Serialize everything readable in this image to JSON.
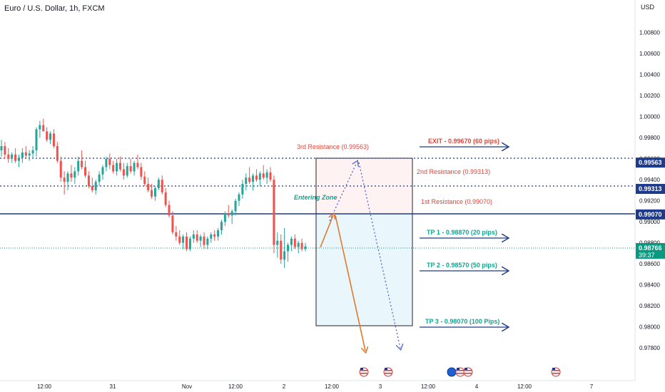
{
  "header": {
    "symbol_title": "Euro / U.S. Dollar, 1h, FXCM",
    "currency": "USD"
  },
  "chart_data": {
    "type": "candlestick",
    "y_ticks": [
      "1.00800",
      "1.00600",
      "1.00400",
      "1.00200",
      "1.00000",
      "0.99800",
      "0.99600",
      "0.99400",
      "0.99200",
      "0.99000",
      "0.98800",
      "0.98600",
      "0.98400",
      "0.98200",
      "0.98000",
      "0.97800"
    ],
    "ylim": [
      0.9772,
      1.0092
    ],
    "x_ticks": [
      "12:00",
      "31",
      "Nov",
      "12:00",
      "2",
      "12:00",
      "3",
      "12:00",
      "4",
      "12:00",
      "7"
    ],
    "price_labels": [
      {
        "text": "0.99563",
        "value": 0.99563,
        "color": "#1e3a8a"
      },
      {
        "text": "0.99313",
        "value": 0.99313,
        "color": "#1e3a8a"
      },
      {
        "text": "0.99070",
        "value": 0.9907,
        "color": "#1e3a8a"
      }
    ],
    "current_price": {
      "price": "0.98766",
      "timer": "39:37",
      "value": 0.98766,
      "color": "#089981"
    },
    "levels": [
      {
        "name": "3rd Resistance",
        "value": 0.99563,
        "style": "dotted",
        "color": "#1e3a8a"
      },
      {
        "name": "2nd Resistance",
        "value": 0.99313,
        "style": "dotted",
        "color": "#1e3a8a"
      },
      {
        "name": "1st Resistance",
        "value": 0.9907,
        "style": "solid",
        "color": "#1e3a8a"
      }
    ],
    "annotations": [
      {
        "text": "3rd Resistance (0.99563)",
        "color": "#e0453a"
      },
      {
        "text": "2nd Resistance (0.99313)",
        "color": "#e0453a"
      },
      {
        "text": "1st Resistance (0.99070)",
        "color": "#e0453a"
      },
      {
        "text": "Entering Zone",
        "color": "#12a58f"
      },
      {
        "text": "EXIT - 0.99670 (60 pips)",
        "color": "#e0453a"
      },
      {
        "text": "TP 1 - 0.98870 (20 pips)",
        "color": "#12a58f"
      },
      {
        "text": "TP 2 - 0.98570 (50 pips)",
        "color": "#12a58f"
      },
      {
        "text": "TP 3 - 0.98070 (100 Pips)",
        "color": "#12a58f"
      }
    ],
    "colors": {
      "up": "#26a69a",
      "down": "#ef5350",
      "level": "#1e3a8a",
      "arrow_orange": "#e07a2a",
      "arrow_blue": "#3f5bd6"
    },
    "candles": [
      [
        0.9968,
        0.9978,
        0.9962,
        0.9972
      ],
      [
        0.9972,
        0.9976,
        0.996,
        0.9964
      ],
      [
        0.9964,
        0.997,
        0.9956,
        0.996
      ],
      [
        0.996,
        0.9966,
        0.9956,
        0.9964
      ],
      [
        0.9964,
        0.997,
        0.9956,
        0.9958
      ],
      [
        0.9958,
        0.9964,
        0.9952,
        0.9961
      ],
      [
        0.9961,
        0.997,
        0.9956,
        0.9966
      ],
      [
        0.9966,
        0.9972,
        0.996,
        0.9963
      ],
      [
        0.9963,
        0.9968,
        0.9958,
        0.9965
      ],
      [
        0.9965,
        0.9972,
        0.996,
        0.9968
      ],
      [
        0.9968,
        0.999,
        0.9962,
        0.9988
      ],
      [
        0.9988,
        0.9996,
        0.998,
        0.9992
      ],
      [
        0.9992,
        0.9998,
        0.9986,
        0.9986
      ],
      [
        0.9986,
        0.999,
        0.9976,
        0.9978
      ],
      [
        0.9978,
        0.9986,
        0.9974,
        0.9984
      ],
      [
        0.9984,
        0.9988,
        0.997,
        0.9972
      ],
      [
        0.9972,
        0.9976,
        0.9956,
        0.9958
      ],
      [
        0.9958,
        0.9962,
        0.9938,
        0.9942
      ],
      [
        0.9942,
        0.9948,
        0.9926,
        0.9938
      ],
      [
        0.9938,
        0.9948,
        0.993,
        0.9946
      ],
      [
        0.9946,
        0.9954,
        0.9938,
        0.9942
      ],
      [
        0.9942,
        0.9952,
        0.9936,
        0.9948
      ],
      [
        0.9948,
        0.9962,
        0.9944,
        0.9958
      ],
      [
        0.9958,
        0.9968,
        0.995,
        0.9952
      ],
      [
        0.9952,
        0.9958,
        0.9942,
        0.9944
      ],
      [
        0.9944,
        0.9948,
        0.9932,
        0.9934
      ],
      [
        0.9934,
        0.9942,
        0.9928,
        0.993
      ],
      [
        0.993,
        0.994,
        0.9926,
        0.9938
      ],
      [
        0.9938,
        0.9948,
        0.9934,
        0.9945
      ],
      [
        0.9945,
        0.9954,
        0.994,
        0.9952
      ],
      [
        0.9952,
        0.9962,
        0.9948,
        0.996
      ],
      [
        0.996,
        0.9965,
        0.995,
        0.9954
      ],
      [
        0.9954,
        0.9958,
        0.9946,
        0.9948
      ],
      [
        0.9948,
        0.996,
        0.9944,
        0.9956
      ],
      [
        0.9956,
        0.9962,
        0.9948,
        0.995
      ],
      [
        0.995,
        0.9956,
        0.994,
        0.9944
      ],
      [
        0.9944,
        0.9956,
        0.9942,
        0.9953
      ],
      [
        0.9953,
        0.996,
        0.9946,
        0.9948
      ],
      [
        0.9948,
        0.9958,
        0.9944,
        0.9956
      ],
      [
        0.9956,
        0.9964,
        0.995,
        0.9952
      ],
      [
        0.9952,
        0.9956,
        0.994,
        0.9943
      ],
      [
        0.9943,
        0.9948,
        0.9934,
        0.9936
      ],
      [
        0.9936,
        0.9942,
        0.9928,
        0.993
      ],
      [
        0.993,
        0.9936,
        0.9922,
        0.9924
      ],
      [
        0.9924,
        0.9934,
        0.992,
        0.9932
      ],
      [
        0.9932,
        0.9942,
        0.993,
        0.994
      ],
      [
        0.994,
        0.9944,
        0.9926,
        0.9928
      ],
      [
        0.9928,
        0.9932,
        0.9914,
        0.9916
      ],
      [
        0.9916,
        0.992,
        0.9904,
        0.9906
      ],
      [
        0.9906,
        0.991,
        0.9888,
        0.989
      ],
      [
        0.989,
        0.9896,
        0.9882,
        0.9886
      ],
      [
        0.9886,
        0.9892,
        0.9878,
        0.988
      ],
      [
        0.988,
        0.9888,
        0.9874,
        0.9886
      ],
      [
        0.9886,
        0.989,
        0.9872,
        0.9874
      ],
      [
        0.9874,
        0.9886,
        0.9872,
        0.9884
      ],
      [
        0.9884,
        0.9892,
        0.988,
        0.9888
      ],
      [
        0.9888,
        0.9892,
        0.988,
        0.9882
      ],
      [
        0.9882,
        0.9888,
        0.9876,
        0.9886
      ],
      [
        0.9886,
        0.989,
        0.9874,
        0.9878
      ],
      [
        0.9878,
        0.9886,
        0.9874,
        0.9884
      ],
      [
        0.9884,
        0.989,
        0.988,
        0.9888
      ],
      [
        0.9888,
        0.9892,
        0.9882,
        0.9886
      ],
      [
        0.9886,
        0.9894,
        0.9882,
        0.9892
      ],
      [
        0.9892,
        0.9902,
        0.9888,
        0.99
      ],
      [
        0.99,
        0.991,
        0.9896,
        0.9908
      ],
      [
        0.9908,
        0.9916,
        0.9904,
        0.9906
      ],
      [
        0.9906,
        0.9912,
        0.9898,
        0.991
      ],
      [
        0.991,
        0.9922,
        0.9906,
        0.992
      ],
      [
        0.992,
        0.9928,
        0.9915,
        0.9926
      ],
      [
        0.9926,
        0.994,
        0.9922,
        0.9936
      ],
      [
        0.9936,
        0.9946,
        0.993,
        0.9942
      ],
      [
        0.9942,
        0.9952,
        0.9936,
        0.9938
      ],
      [
        0.9938,
        0.9946,
        0.993,
        0.9944
      ],
      [
        0.9944,
        0.995,
        0.9938,
        0.994
      ],
      [
        0.994,
        0.9948,
        0.9934,
        0.9946
      ],
      [
        0.9946,
        0.9954,
        0.994,
        0.9942
      ],
      [
        0.9942,
        0.995,
        0.9936,
        0.9947
      ],
      [
        0.9947,
        0.9952,
        0.9938,
        0.994
      ],
      [
        0.994,
        0.9944,
        0.987,
        0.9878
      ],
      [
        0.9878,
        0.989,
        0.9866,
        0.9882
      ],
      [
        0.9882,
        0.9888,
        0.986,
        0.9864
      ],
      [
        0.9864,
        0.9894,
        0.9856,
        0.9872
      ],
      [
        0.9872,
        0.988,
        0.9862,
        0.9878
      ],
      [
        0.9878,
        0.9886,
        0.9872,
        0.9884
      ],
      [
        0.9884,
        0.9888,
        0.9874,
        0.9876
      ],
      [
        0.9876,
        0.9882,
        0.987,
        0.988
      ],
      [
        0.988,
        0.9884,
        0.9872,
        0.9874
      ],
      [
        0.9874,
        0.988,
        0.9872,
        0.98766
      ]
    ]
  }
}
